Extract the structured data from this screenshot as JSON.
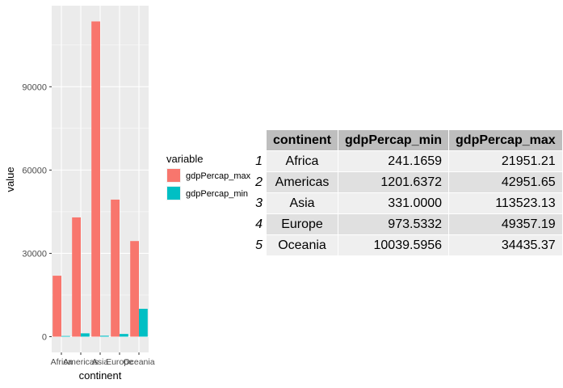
{
  "chart_data": {
    "type": "bar",
    "categories": [
      "Africa",
      "Americas",
      "Asia",
      "Europe",
      "Oceania"
    ],
    "series": [
      {
        "name": "gdpPercap_max",
        "color": "#F8766D",
        "values": [
          21951.21,
          42951.65,
          113523.13,
          49357.19,
          34435.37
        ]
      },
      {
        "name": "gdpPercap_min",
        "color": "#00BFC4",
        "values": [
          241.1659,
          1201.6372,
          331.0,
          973.5332,
          10039.5956
        ]
      }
    ],
    "xlabel": "continent",
    "ylabel": "value",
    "yticks": [
      0,
      30000,
      60000,
      90000
    ],
    "ytick_labels": [
      "0",
      "30000",
      "60000",
      "90000"
    ],
    "ylim": [
      -5676,
      119199
    ],
    "legend_title": "variable",
    "legend_position": "right",
    "grid": true,
    "panel_background": "#EBEBEB"
  },
  "table": {
    "columns": [
      "continent",
      "gdpPercap_min",
      "gdpPercap_max"
    ],
    "rows": [
      {
        "rowname": "1",
        "continent": "Africa",
        "min": "241.1659",
        "max": "21951.21"
      },
      {
        "rowname": "2",
        "continent": "Americas",
        "min": "1201.6372",
        "max": "42951.65"
      },
      {
        "rowname": "3",
        "continent": "Asia",
        "min": "331.0000",
        "max": "113523.13"
      },
      {
        "rowname": "4",
        "continent": "Europe",
        "min": "973.5332",
        "max": "49357.19"
      },
      {
        "rowname": "5",
        "continent": "Oceania",
        "min": "10039.5956",
        "max": "34435.37"
      }
    ]
  }
}
